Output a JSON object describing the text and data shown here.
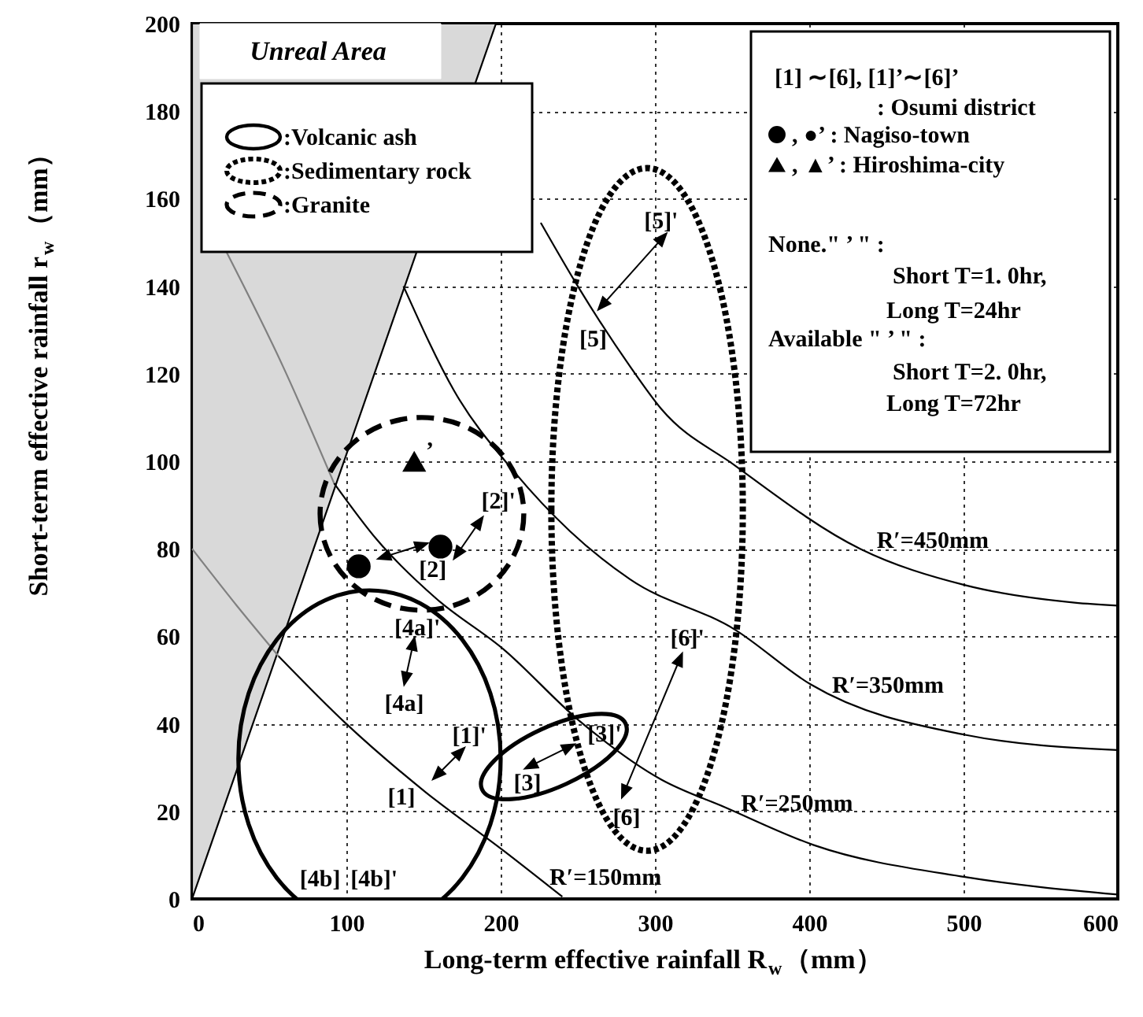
{
  "chart_data": {
    "type": "line",
    "xlabel": "Long-term effective rainfall R$_{w}$（mm）",
    "ylabel": "Short-term effective rainfall r$_{w}$（mm）",
    "xlim": [
      0,
      600
    ],
    "ylim": [
      0,
      200
    ],
    "xticks": [
      0,
      100,
      200,
      300,
      400,
      500,
      600
    ],
    "yticks": [
      0,
      20,
      40,
      60,
      80,
      100,
      120,
      140,
      160,
      180,
      200
    ],
    "grid": true,
    "legend": "top right",
    "annotations": [
      "Unreal Area",
      ":Volcanic ash",
      ":Sedimentary rock",
      ":Granite",
      "[1] ∼[6],  [1]’∼[6]’",
      ": Osumi district",
      "None.\" ’ \" :",
      "Short T=1. 0hr,",
      "Long T=24hr",
      "Available \" ’ \" :",
      "Short T=2. 0hr,",
      "Long T=72hr",
      "’",
      "[2]'",
      "[2]",
      "[4a]'",
      "[4a]",
      "[1]'",
      "[1]",
      "[3]",
      "[3]'",
      "[6]",
      "[6]'",
      "[5]'",
      "[5]",
      "[4b]",
      "[4b]'",
      "R′=150mm",
      "R′=250mm",
      "R′=350mm",
      "R′=450mm"
    ],
    "series": [
      {
        "color": "#808080",
        "x": [
          0,
          29,
          56
        ],
        "values": [
          80,
          67,
          55.5
        ]
      },
      {
        "color": "#000000",
        "x": [
          56,
          100,
          151,
          202,
          240
        ],
        "values": [
          55.5,
          40,
          24.5,
          11,
          0.5
        ]
      },
      {
        "color": "#808080",
        "x": [
          22,
          59,
          92
        ],
        "values": [
          148,
          121.6,
          95
        ]
      },
      {
        "color": "#000000",
        "x": [
          92,
          120,
          158,
          202,
          250,
          304,
          345,
          403,
          501,
          600
        ],
        "values": [
          95,
          82,
          68.7,
          57,
          41,
          27.3,
          21,
          12.3,
          5,
          1
        ]
      },
      {
        "color": "#000000",
        "x": [
          137,
          170,
          209,
          245,
          284,
          352,
          401,
          501,
          600
        ],
        "values": [
          140,
          116,
          97.5,
          84,
          73,
          61.5,
          49,
          37.5,
          34
        ]
      },
      {
        "color": "#000000",
        "x": [
          226,
          250,
          284,
          304,
          352,
          433,
          501,
          572,
          600
        ],
        "values": [
          154.5,
          140,
          121.6,
          112,
          99,
          80,
          71.7,
          67.7,
          67
        ]
      },
      {
        "type": "scatter",
        "name": ", ●’   : Nagiso-town",
        "marker": "circle",
        "color": "#000000",
        "x": [
          108,
          161
        ],
        "values": [
          76,
          80.5
        ]
      },
      {
        "type": "scatter",
        "name": ", ▲’   : Hiroshima-city",
        "marker": "triangle",
        "color": "#000000",
        "x": [
          144
        ],
        "values": [
          100
        ]
      }
    ]
  }
}
